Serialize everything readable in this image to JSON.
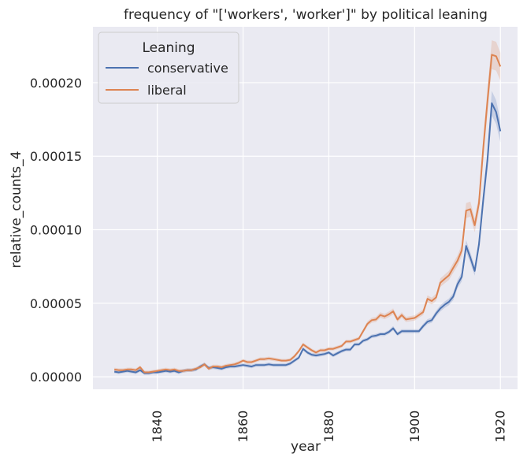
{
  "chart_data": {
    "type": "line",
    "title": "frequency of \"['workers', 'worker']\" by political leaning",
    "xlabel": "year",
    "ylabel": "relative_counts_4",
    "xlim": [
      1825,
      1924
    ],
    "ylim": [
      -8.5e-06,
      0.000238
    ],
    "x_ticks": [
      1840,
      1860,
      1880,
      1900,
      1920
    ],
    "y_ticks": [
      0.0,
      5e-05,
      0.0001,
      0.00015,
      0.0002
    ],
    "y_tick_labels": [
      "0.00000",
      "0.00005",
      "0.00010",
      "0.00015",
      "0.00020"
    ],
    "grid": true,
    "legend": {
      "title": "Leaning",
      "position": "top-left"
    },
    "x": [
      1830,
      1831,
      1832,
      1833,
      1834,
      1835,
      1836,
      1837,
      1838,
      1839,
      1840,
      1841,
      1842,
      1843,
      1844,
      1845,
      1846,
      1847,
      1848,
      1849,
      1850,
      1851,
      1852,
      1853,
      1854,
      1855,
      1856,
      1857,
      1858,
      1859,
      1860,
      1861,
      1862,
      1863,
      1864,
      1865,
      1866,
      1867,
      1868,
      1869,
      1870,
      1871,
      1872,
      1873,
      1874,
      1875,
      1876,
      1877,
      1878,
      1879,
      1880,
      1881,
      1882,
      1883,
      1884,
      1885,
      1886,
      1887,
      1888,
      1889,
      1890,
      1891,
      1892,
      1893,
      1894,
      1895,
      1896,
      1897,
      1898,
      1899,
      1900,
      1901,
      1902,
      1903,
      1904,
      1905,
      1906,
      1907,
      1908,
      1909,
      1910,
      1911,
      1912,
      1913,
      1914,
      1915,
      1916,
      1917,
      1918,
      1919,
      1920
    ],
    "series": [
      {
        "name": "conservative",
        "color": "#4c72b0",
        "values": [
          3.5e-06,
          3e-06,
          3.5e-06,
          4e-06,
          3.5e-06,
          3e-06,
          4.5e-06,
          2.5e-06,
          2.5e-06,
          3e-06,
          3e-06,
          3.5e-06,
          4e-06,
          3.5e-06,
          4e-06,
          3e-06,
          4e-06,
          4.5e-06,
          4.5e-06,
          5e-06,
          7e-06,
          8.5e-06,
          6e-06,
          6.5e-06,
          6e-06,
          5.5e-06,
          6.5e-06,
          7e-06,
          7e-06,
          7.5e-06,
          8e-06,
          7.5e-06,
          7e-06,
          8e-06,
          8e-06,
          8e-06,
          8.5e-06,
          8e-06,
          8e-06,
          8e-06,
          8e-06,
          9e-06,
          1.1e-05,
          1.3e-05,
          1.9e-05,
          1.65e-05,
          1.5e-05,
          1.45e-05,
          1.5e-05,
          1.55e-05,
          1.65e-05,
          1.45e-05,
          1.6e-05,
          1.75e-05,
          1.85e-05,
          1.85e-05,
          2.2e-05,
          2.2e-05,
          2.45e-05,
          2.55e-05,
          2.75e-05,
          2.8e-05,
          2.9e-05,
          2.9e-05,
          3.05e-05,
          3.3e-05,
          2.9e-05,
          3.1e-05,
          3.1e-05,
          3.1e-05,
          3.1e-05,
          3.1e-05,
          3.45e-05,
          3.75e-05,
          3.85e-05,
          4.3e-05,
          4.65e-05,
          4.9e-05,
          5.1e-05,
          5.45e-05,
          6.3e-05,
          6.8e-05,
          8.9e-05,
          8.1e-05,
          7.2e-05,
          9e-05,
          0.00012,
          0.000148,
          0.000186,
          0.00018,
          0.000167
        ]
      },
      {
        "name": "liberal",
        "color": "#dd8452",
        "values": [
          5e-06,
          4.5e-06,
          4.5e-06,
          5e-06,
          5e-06,
          4.5e-06,
          6.5e-06,
          3e-06,
          3e-06,
          3.5e-06,
          4e-06,
          4.5e-06,
          5e-06,
          4.5e-06,
          5e-06,
          4e-06,
          4e-06,
          4.5e-06,
          4.5e-06,
          5.5e-06,
          6.5e-06,
          8.5e-06,
          5.5e-06,
          7e-06,
          7e-06,
          6.5e-06,
          7.5e-06,
          8e-06,
          8.5e-06,
          9.5e-06,
          1.1e-05,
          1e-05,
          1e-05,
          1.1e-05,
          1.2e-05,
          1.2e-05,
          1.25e-05,
          1.2e-05,
          1.15e-05,
          1.1e-05,
          1.1e-05,
          1.15e-05,
          1.4e-05,
          1.75e-05,
          2.2e-05,
          2e-05,
          1.8e-05,
          1.65e-05,
          1.8e-05,
          1.8e-05,
          1.9e-05,
          1.9e-05,
          2e-05,
          2.1e-05,
          2.4e-05,
          2.4e-05,
          2.5e-05,
          2.6e-05,
          3.1e-05,
          3.6e-05,
          3.85e-05,
          3.9e-05,
          4.2e-05,
          4.1e-05,
          4.25e-05,
          4.45e-05,
          3.9e-05,
          4.2e-05,
          3.9e-05,
          3.95e-05,
          4e-05,
          4.2e-05,
          4.4e-05,
          5.3e-05,
          5.15e-05,
          5.4e-05,
          6.4e-05,
          6.65e-05,
          6.9e-05,
          7.4e-05,
          7.9e-05,
          8.6e-05,
          0.000113,
          0.000114,
          0.000103,
          0.000118,
          0.000155,
          0.000188,
          0.000219,
          0.000218,
          0.000211
        ]
      }
    ]
  }
}
